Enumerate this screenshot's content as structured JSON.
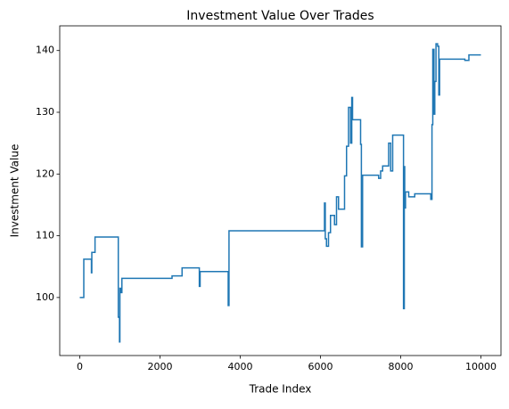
{
  "chart_data": {
    "type": "line",
    "title": "Investment Value Over Trades",
    "xlabel": "Trade Index",
    "ylabel": "Investment Value",
    "drawstyle": "steps-post",
    "xlim": [
      -500,
      10500
    ],
    "ylim": [
      90.6,
      144
    ],
    "xticks": [
      0,
      2000,
      4000,
      6000,
      8000,
      10000
    ],
    "yticks": [
      100,
      110,
      120,
      130,
      140
    ],
    "series": [
      {
        "name": "Investment Value",
        "color": "#1f77b4",
        "x": [
          0,
          100,
          290,
          300,
          380,
          960,
          990,
          1000,
          1020,
          1050,
          2300,
          2550,
          2980,
          3000,
          3700,
          3720,
          6100,
          6120,
          6150,
          6200,
          6250,
          6350,
          6400,
          6450,
          6600,
          6650,
          6700,
          6750,
          6780,
          6800,
          7000,
          7020,
          7050,
          7450,
          7500,
          7550,
          7700,
          7750,
          7800,
          8050,
          8070,
          8090,
          8100,
          8120,
          8200,
          8350,
          8750,
          8780,
          8800,
          8830,
          8850,
          8880,
          8920,
          8950,
          8970,
          9600,
          9700,
          10000
        ],
        "values": [
          100,
          106.2,
          104,
          107.3,
          109.8,
          96.8,
          92.8,
          101.5,
          100.8,
          103.1,
          103.5,
          104.8,
          101.8,
          104.2,
          98.7,
          110.8,
          115.3,
          109.5,
          108.3,
          110.5,
          113.3,
          111.8,
          116.3,
          114.3,
          119.7,
          124.5,
          130.8,
          125,
          132.4,
          128.8,
          124.8,
          108.2,
          119.8,
          119.3,
          120.5,
          121.3,
          125,
          120.5,
          126.3,
          126.3,
          98.2,
          121.2,
          114.5,
          117.1,
          116.3,
          116.8,
          115.9,
          128,
          140.2,
          129.7,
          135,
          141.1,
          140.7,
          132.8,
          138.6,
          138.4,
          139.3,
          139.3
        ]
      }
    ]
  }
}
